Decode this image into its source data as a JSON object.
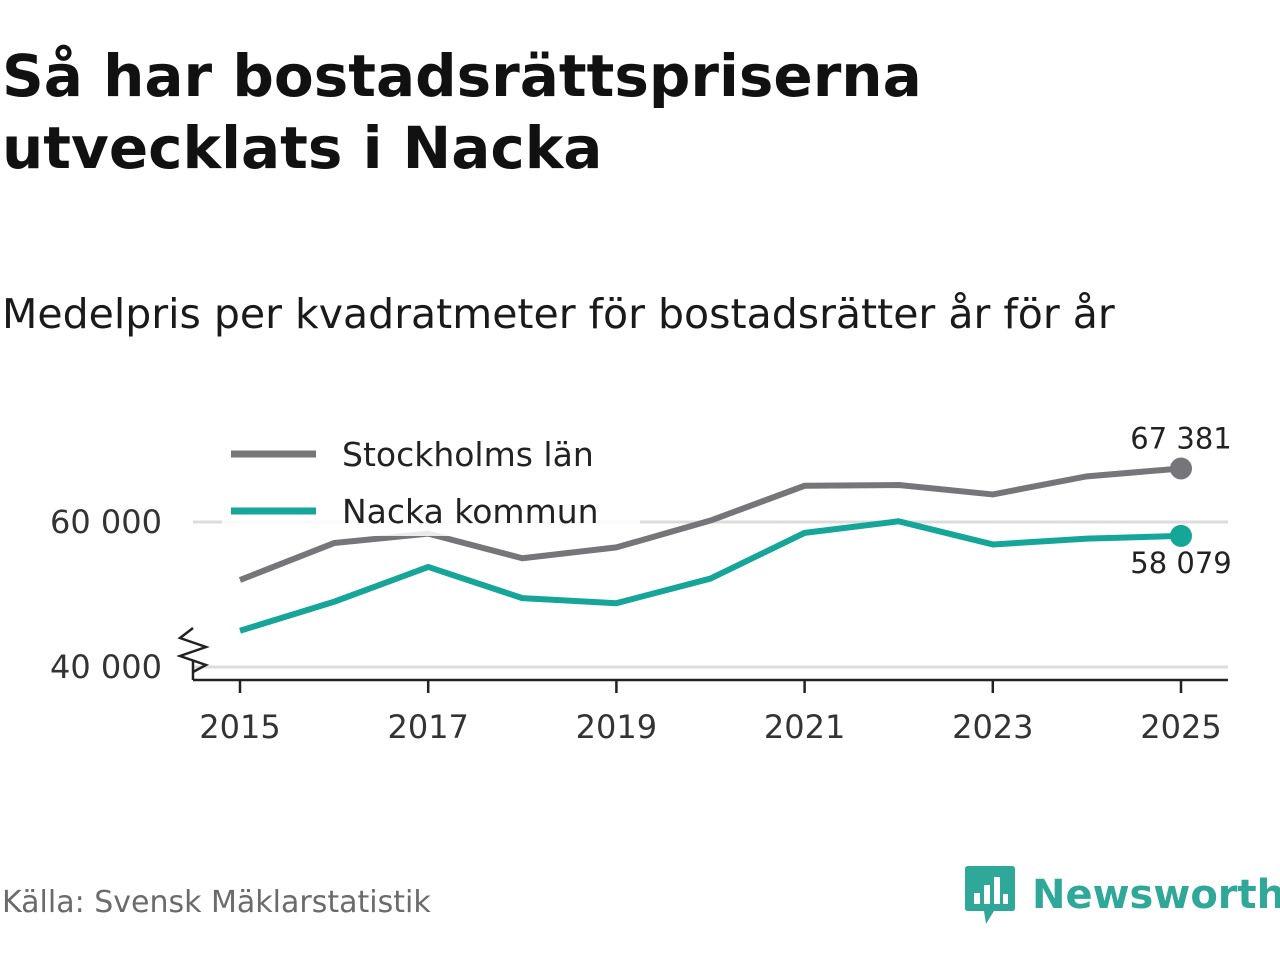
{
  "title": "Så har bostadsrättspriserna utvecklats i Nacka",
  "subtitle": "Medelpris per kvadratmeter för bostadsrätter år för år",
  "source": "Källa: Svensk Mäklarstatistik",
  "brand": {
    "name": "Newsworthy",
    "icon": "newsworthy-logo-icon",
    "color": "#2fa899"
  },
  "chart_data": {
    "type": "line",
    "title": "Så har bostadsrättspriserna utvecklats i Nacka",
    "subtitle": "Medelpris per kvadratmeter för bostadsrätter år för år",
    "xlabel": "",
    "ylabel": "",
    "x": [
      2015,
      2016,
      2017,
      2018,
      2019,
      2020,
      2021,
      2022,
      2023,
      2024,
      2025
    ],
    "x_ticks": [
      2015,
      2017,
      2019,
      2021,
      2023,
      2025
    ],
    "x_tick_labels": [
      "2015",
      "2017",
      "2019",
      "2021",
      "2023",
      "2025"
    ],
    "y_ticks": [
      40000,
      60000
    ],
    "y_tick_labels": [
      "40 000",
      "60 000"
    ],
    "ylim": [
      40000,
      67381
    ],
    "axis_break": true,
    "grid": true,
    "legend_position": "top-left",
    "series": [
      {
        "name": "Stockholms län",
        "color": "#767579",
        "values": [
          52000,
          57100,
          58400,
          55000,
          56500,
          60200,
          65000,
          65100,
          63800,
          66300,
          67381
        ],
        "end_label": "67 381"
      },
      {
        "name": "Nacka kommun",
        "color": "#15a599",
        "values": [
          45000,
          49000,
          53800,
          49500,
          48800,
          52200,
          58500,
          60100,
          56900,
          57700,
          58079
        ],
        "end_label": "58 079"
      }
    ]
  }
}
